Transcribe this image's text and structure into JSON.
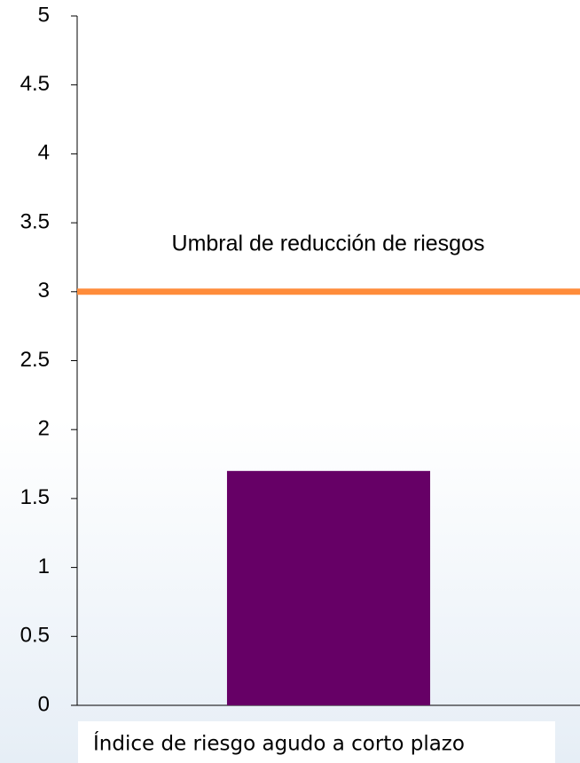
{
  "chart_data": {
    "type": "bar",
    "categories": [
      "Índice de riesgo agudo a corto plazo"
    ],
    "values": [
      1.7
    ],
    "color": "#660066",
    "ylim": [
      0,
      5
    ],
    "yticks": [
      0,
      0.5,
      1,
      1.5,
      2,
      2.5,
      3,
      3.5,
      4,
      4.5,
      5
    ],
    "reference_line": {
      "value": 3,
      "label": "Umbral de reducción de riesgos",
      "color": "#ff8c3a"
    }
  }
}
